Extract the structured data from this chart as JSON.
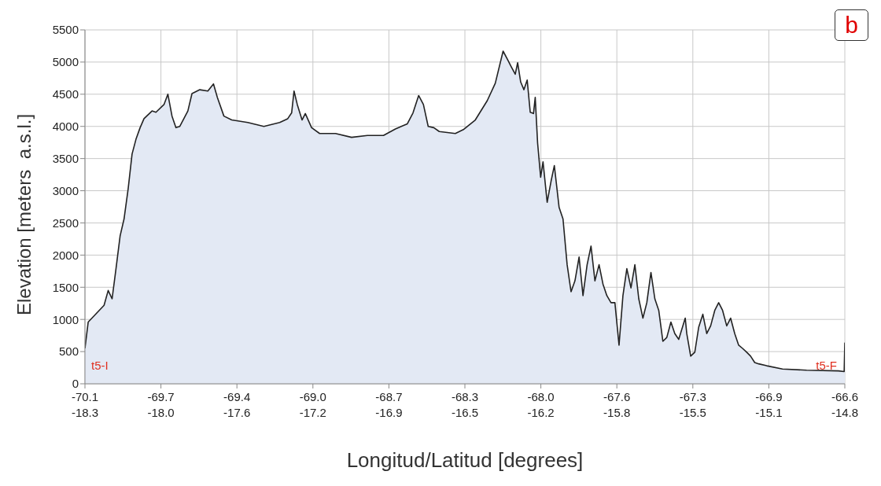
{
  "chart_data": {
    "type": "area",
    "title": "b",
    "xlabel": "Longitud/Latitud [degrees]",
    "ylabel": "Elevation [meters  a.s.l.]",
    "annotations": [
      "t5-I",
      "t5-F"
    ],
    "series": [
      {
        "color": "#222222",
        "x": [
          -70.1,
          -70.085,
          -70.012,
          -69.993,
          -69.975,
          -69.957,
          -69.938,
          -69.92,
          -69.901,
          -69.883,
          -69.865,
          -69.846,
          -69.828,
          -69.791,
          -69.773,
          -69.736,
          -69.718,
          -69.699,
          -69.681,
          -69.663,
          -69.626,
          -69.607,
          -69.571,
          -69.534,
          -69.508,
          -69.49,
          -69.46,
          -69.424,
          -69.35,
          -69.276,
          -69.203,
          -69.166,
          -69.148,
          -69.137,
          -69.122,
          -69.1,
          -69.085,
          -69.056,
          -69.019,
          -68.946,
          -68.872,
          -68.799,
          -68.725,
          -68.67,
          -68.615,
          -68.589,
          -68.563,
          -68.541,
          -68.519,
          -68.493,
          -68.468,
          -68.394,
          -68.357,
          -68.302,
          -68.247,
          -68.21,
          -68.174,
          -68.155,
          -68.137,
          -68.118,
          -68.107,
          -68.093,
          -68.078,
          -68.063,
          -68.049,
          -68.034,
          -68.026,
          -68.015,
          -68.001,
          -67.99,
          -67.971,
          -67.953,
          -67.938,
          -67.916,
          -67.898,
          -67.879,
          -67.861,
          -67.843,
          -67.824,
          -67.806,
          -67.787,
          -67.769,
          -67.751,
          -67.732,
          -67.714,
          -67.696,
          -67.677,
          -67.659,
          -67.64,
          -67.622,
          -67.604,
          -67.585,
          -67.567,
          -67.549,
          -67.53,
          -67.512,
          -67.493,
          -67.475,
          -67.457,
          -67.438,
          -67.42,
          -67.401,
          -67.383,
          -67.365,
          -67.335,
          -67.328,
          -67.31,
          -67.291,
          -67.273,
          -67.254,
          -67.236,
          -67.218,
          -67.199,
          -67.181,
          -67.163,
          -67.144,
          -67.126,
          -67.107,
          -67.089,
          -67.071,
          -67.052,
          -67.034,
          -67.015,
          -66.997,
          -66.96,
          -66.887,
          -66.776,
          -66.629,
          -66.603,
          -66.6
        ],
        "values": [
          550,
          960,
          1220,
          1450,
          1320,
          1790,
          2300,
          2560,
          3030,
          3570,
          3800,
          3980,
          4120,
          4240,
          4220,
          4340,
          4500,
          4160,
          3980,
          4000,
          4240,
          4510,
          4570,
          4550,
          4660,
          4450,
          4160,
          4100,
          4060,
          4000,
          4060,
          4120,
          4210,
          4550,
          4340,
          4100,
          4200,
          3980,
          3890,
          3890,
          3830,
          3860,
          3860,
          3960,
          4040,
          4210,
          4480,
          4340,
          4000,
          3980,
          3920,
          3890,
          3950,
          4100,
          4400,
          4670,
          5170,
          5050,
          4930,
          4810,
          4990,
          4690,
          4570,
          4720,
          4220,
          4200,
          4450,
          3740,
          3210,
          3450,
          2820,
          3150,
          3390,
          2740,
          2560,
          1850,
          1430,
          1600,
          1970,
          1370,
          1850,
          2140,
          1600,
          1850,
          1550,
          1370,
          1260,
          1260,
          600,
          1370,
          1790,
          1490,
          1850,
          1320,
          1020,
          1260,
          1730,
          1320,
          1140,
          660,
          720,
          960,
          780,
          690,
          1020,
          780,
          430,
          490,
          880,
          1080,
          780,
          900,
          1140,
          1260,
          1140,
          900,
          1020,
          780,
          600,
          550,
          490,
          430,
          330,
          310,
          280,
          230,
          210,
          200,
          190,
          640
        ]
      }
    ],
    "xlim": [
      -70.1,
      -66.6
    ],
    "xticks": [
      -70.1,
      {
        "value": -69.75,
        "label": "-69.7"
      },
      -69.4,
      {
        "value": -69.05,
        "label": "-69.0"
      },
      -68.7,
      {
        "value": -68.35,
        "label": "-68.3"
      },
      {
        "value": -68.0,
        "label": "-68.0"
      },
      {
        "value": -67.65,
        "label": "-67.6"
      },
      -67.3,
      {
        "value": -66.95,
        "label": "-66.9"
      },
      -66.6
    ],
    "x2lim": [
      -18.3,
      -14.8
    ],
    "x2ticks": [
      -18.3,
      {
        "value": -17.95,
        "label": "-18.0"
      },
      {
        "value": -17.6,
        "label": "-17.6"
      },
      {
        "value": -17.25,
        "label": "-17.2"
      },
      -16.9,
      {
        "value": -16.55,
        "label": "-16.5"
      },
      {
        "value": -16.2,
        "label": "-16.2"
      },
      {
        "value": -15.85,
        "label": "-15.8"
      },
      -15.5,
      {
        "value": -15.15,
        "label": "-15.1"
      },
      -14.8
    ],
    "ylim": [
      0,
      5500
    ],
    "yticks": [
      0,
      500,
      1000,
      1500,
      2000,
      2500,
      3000,
      3500,
      4000,
      4500,
      5000,
      5500
    ],
    "grid": true
  }
}
